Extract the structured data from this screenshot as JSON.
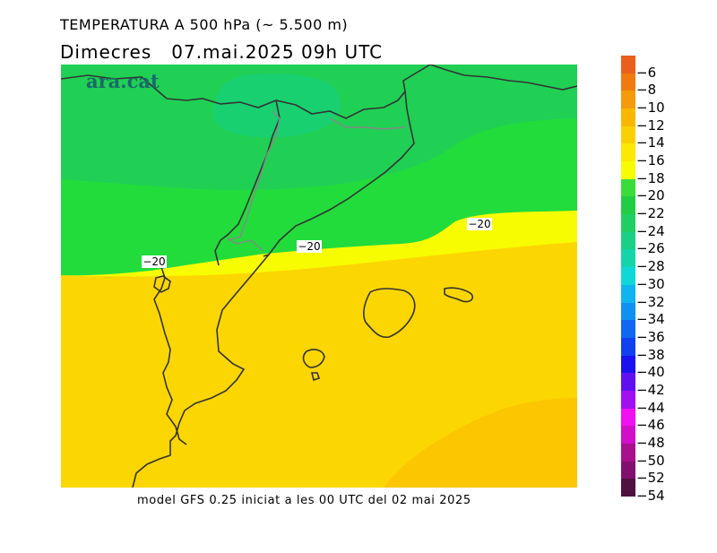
{
  "header": {
    "title": "TEMPERATURA A 500 hPa (~ 5.500 m)",
    "day": "Dimecres",
    "datetime": "07.mai.2025 09h UTC"
  },
  "map": {
    "logo": "ara.cat",
    "contour_labels": [
      "-20",
      "-20",
      "-20"
    ]
  },
  "footer": "model GFS 0.25 iniciat a les 00 UTC del 02 mai 2025",
  "colorbar": {
    "labels": [
      "-6",
      "-8",
      "-10",
      "-12",
      "-14",
      "-16",
      "-18",
      "-20",
      "-22",
      "-24",
      "-26",
      "-28",
      "-30",
      "-32",
      "-34",
      "-36",
      "-38",
      "-40",
      "-42",
      "-44",
      "-46",
      "-48",
      "-50",
      "-52",
      "-54"
    ],
    "colors": [
      "#e8601a",
      "#f07a10",
      "#f59a0a",
      "#f9b800",
      "#fcd000",
      "#fce800",
      "#f8fc00",
      "#3adc3a",
      "#22cc44",
      "#1fd060",
      "#1ad086",
      "#14d4aa",
      "#10d8d8",
      "#10b4f0",
      "#1090f0",
      "#1068f0",
      "#1040f0",
      "#1a10f0",
      "#6010f0",
      "#a010f0",
      "#f010f0",
      "#d010c8",
      "#a8108c",
      "#801070",
      "#501040"
    ]
  }
}
